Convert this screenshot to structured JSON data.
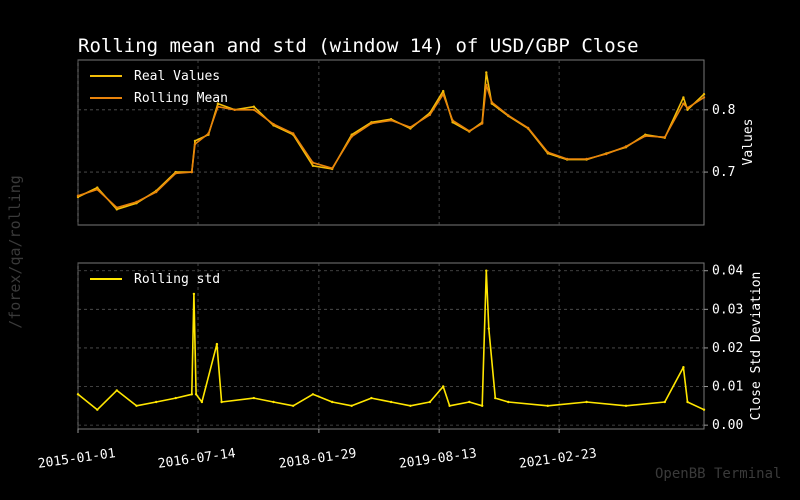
{
  "title": "Rolling mean and std (window 14) of USD/GBP Close",
  "side_label": "/forex/qa/rolling",
  "watermark": "OpenBB Terminal",
  "colors": {
    "real": "#f2bd08",
    "mean": "#e8830b",
    "std": "#ffe600",
    "background": "#000000"
  },
  "chart_data": [
    {
      "type": "line",
      "panel": "top",
      "ylabel": "Values",
      "ylim": [
        0.615,
        0.88
      ],
      "y_axis_side": "right",
      "yticks": [
        0.7,
        0.8
      ],
      "ytick_labels": [
        "0.7",
        "0.8"
      ],
      "grid": true,
      "legend_placement": "top-left",
      "x": [
        "2015-01-01",
        "2015-04-01",
        "2015-07-01",
        "2015-10-01",
        "2016-01-01",
        "2016-04-01",
        "2016-06-15",
        "2016-06-30",
        "2016-09-01",
        "2016-10-15",
        "2017-01-01",
        "2017-04-01",
        "2017-07-01",
        "2017-10-01",
        "2018-01-01",
        "2018-04-01",
        "2018-07-01",
        "2018-10-01",
        "2019-01-01",
        "2019-04-01",
        "2019-07-01",
        "2019-09-01",
        "2019-10-15",
        "2020-01-01",
        "2020-03-01",
        "2020-03-20",
        "2020-04-15",
        "2020-07-01",
        "2020-10-01",
        "2021-01-01",
        "2021-04-01",
        "2021-07-01",
        "2021-10-01",
        "2022-01-01",
        "2022-04-01",
        "2022-07-01",
        "2022-09-26",
        "2022-10-15",
        "2022-12-31"
      ],
      "series": [
        {
          "name": "Real Values",
          "values": [
            0.66,
            0.675,
            0.64,
            0.65,
            0.67,
            0.7,
            0.7,
            0.75,
            0.76,
            0.81,
            0.8,
            0.805,
            0.775,
            0.76,
            0.71,
            0.705,
            0.76,
            0.78,
            0.785,
            0.77,
            0.795,
            0.83,
            0.78,
            0.765,
            0.78,
            0.86,
            0.81,
            0.79,
            0.77,
            0.73,
            0.72,
            0.72,
            0.73,
            0.74,
            0.76,
            0.755,
            0.82,
            0.8,
            0.825
          ]
        },
        {
          "name": "Rolling Mean",
          "values": [
            0.662,
            0.672,
            0.643,
            0.652,
            0.668,
            0.698,
            0.7,
            0.745,
            0.762,
            0.805,
            0.8,
            0.8,
            0.777,
            0.762,
            0.715,
            0.706,
            0.757,
            0.778,
            0.783,
            0.772,
            0.792,
            0.825,
            0.783,
            0.766,
            0.778,
            0.84,
            0.812,
            0.791,
            0.771,
            0.732,
            0.721,
            0.721,
            0.729,
            0.741,
            0.758,
            0.756,
            0.81,
            0.803,
            0.82
          ]
        }
      ]
    },
    {
      "type": "line",
      "panel": "bottom",
      "ylabel": "Close Std Deviation",
      "ylim": [
        -0.001,
        0.042
      ],
      "y_axis_side": "right",
      "yticks": [
        0.0,
        0.01,
        0.02,
        0.03,
        0.04
      ],
      "ytick_labels": [
        "0.00",
        "0.01",
        "0.02",
        "0.03",
        "0.04"
      ],
      "grid": true,
      "legend_placement": "top-left",
      "x": [
        "2015-01-01",
        "2015-04-01",
        "2015-07-01",
        "2015-10-01",
        "2016-01-01",
        "2016-04-01",
        "2016-06-15",
        "2016-06-25",
        "2016-07-05",
        "2016-08-01",
        "2016-10-10",
        "2016-11-01",
        "2017-04-01",
        "2017-07-01",
        "2017-10-01",
        "2018-01-01",
        "2018-04-01",
        "2018-07-01",
        "2018-10-01",
        "2019-01-01",
        "2019-04-01",
        "2019-07-01",
        "2019-09-01",
        "2019-10-01",
        "2020-01-01",
        "2020-03-01",
        "2020-03-20",
        "2020-04-01",
        "2020-05-01",
        "2020-07-01",
        "2021-01-01",
        "2021-07-01",
        "2022-01-01",
        "2022-07-01",
        "2022-09-26",
        "2022-10-15",
        "2022-12-31"
      ],
      "series": [
        {
          "name": "Rolling std",
          "values": [
            0.008,
            0.004,
            0.009,
            0.005,
            0.006,
            0.007,
            0.008,
            0.034,
            0.008,
            0.006,
            0.021,
            0.006,
            0.007,
            0.006,
            0.005,
            0.008,
            0.006,
            0.005,
            0.007,
            0.006,
            0.005,
            0.006,
            0.01,
            0.005,
            0.006,
            0.005,
            0.04,
            0.025,
            0.007,
            0.006,
            0.005,
            0.006,
            0.005,
            0.006,
            0.015,
            0.006,
            0.004
          ]
        }
      ]
    }
  ],
  "x_axis": {
    "tick_dates": [
      "2015-01-01",
      "2016-07-14",
      "2018-01-29",
      "2019-08-13",
      "2021-02-23"
    ],
    "tick_labels": [
      "2015-01-01",
      "2016-07-14",
      "2018-01-29",
      "2019-08-13",
      "2021-02-23"
    ],
    "start": "2015-01-01",
    "end": "2022-12-31"
  }
}
